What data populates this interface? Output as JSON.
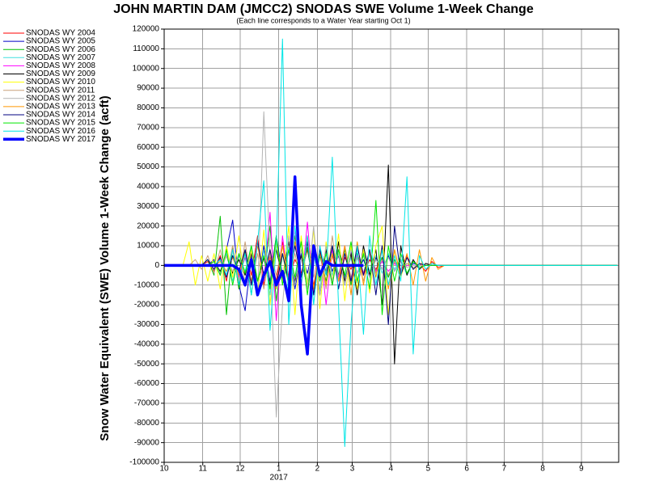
{
  "chart_data": {
    "type": "line",
    "title": "JOHN MARTIN DAM (JMCC2) SNODAS SWE Volume 1-Week Change",
    "subtitle": "(Each line corresponds to a Water Year starting Oct 1)",
    "y_label": "Snow Water Equivalent (SWE) Volume 1-Week Change (acft)",
    "legend": "left",
    "grid": true,
    "xlim": [
      0,
      365
    ],
    "ylim": [
      -100000,
      120000
    ],
    "xticks": [
      {
        "value": 0,
        "label": "10"
      },
      {
        "value": 31,
        "label": "11"
      },
      {
        "value": 61,
        "label": "12"
      },
      {
        "value": 92,
        "label": "1",
        "sublabel": "2017"
      },
      {
        "value": 123,
        "label": "2"
      },
      {
        "value": 151,
        "label": "3"
      },
      {
        "value": 182,
        "label": "4"
      },
      {
        "value": 212,
        "label": "5"
      },
      {
        "value": 243,
        "label": "6"
      },
      {
        "value": 273,
        "label": "7"
      },
      {
        "value": 304,
        "label": "8"
      },
      {
        "value": 335,
        "label": "9"
      }
    ],
    "yticks": [
      -100000,
      -90000,
      -80000,
      -70000,
      -60000,
      -50000,
      -40000,
      -30000,
      -20000,
      -10000,
      0,
      10000,
      20000,
      30000,
      40000,
      50000,
      60000,
      70000,
      80000,
      90000,
      100000,
      110000,
      120000
    ],
    "x": [
      0,
      5,
      10,
      15,
      20,
      25,
      30,
      35,
      40,
      45,
      50,
      55,
      60,
      65,
      70,
      75,
      80,
      85,
      90,
      95,
      100,
      105,
      110,
      115,
      120,
      125,
      130,
      135,
      140,
      145,
      150,
      155,
      160,
      165,
      170,
      175,
      180,
      185,
      190,
      195,
      200,
      205,
      210,
      215,
      220,
      225,
      230,
      235,
      240,
      300,
      364
    ],
    "series": [
      {
        "name": "SNODAS WY 2004",
        "color": "#ff0000",
        "width": 1,
        "values": [
          0,
          0,
          0,
          0,
          0,
          0,
          0,
          2000,
          -3000,
          5000,
          -8000,
          10000,
          -12000,
          8000,
          -5000,
          15000,
          -10000,
          5000,
          -8000,
          12000,
          -6000,
          3000,
          -4000,
          8000,
          -10000,
          6000,
          -3000,
          5000,
          -8000,
          4000,
          -2000,
          6000,
          -5000,
          3000,
          -2000,
          4000,
          -6000,
          2000,
          -3000,
          5000,
          -2000,
          1000,
          -3000,
          2000,
          -1000,
          0,
          0,
          0,
          0,
          0,
          0
        ]
      },
      {
        "name": "SNODAS WY 2005",
        "color": "#0000c8",
        "width": 1,
        "values": [
          0,
          0,
          0,
          0,
          0,
          0,
          0,
          0,
          3000,
          -5000,
          8000,
          23000,
          -10000,
          -23000,
          5000,
          -12000,
          10000,
          -8000,
          15000,
          -5000,
          8000,
          -12000,
          6000,
          -4000,
          10000,
          -15000,
          8000,
          -3000,
          5000,
          -10000,
          7000,
          -4000,
          3000,
          -6000,
          4000,
          -2000,
          5000,
          -3000,
          2000,
          -4000,
          1000,
          0,
          0,
          0,
          0,
          0,
          0,
          0,
          0,
          0,
          0
        ]
      },
      {
        "name": "SNODAS WY 2006",
        "color": "#00c000",
        "width": 1,
        "values": [
          0,
          0,
          0,
          0,
          0,
          0,
          0,
          3000,
          -5000,
          25000,
          -25000,
          10000,
          -12000,
          8000,
          -15000,
          12000,
          -8000,
          20000,
          -18000,
          6000,
          -10000,
          15000,
          -6000,
          9000,
          -12000,
          5000,
          -8000,
          10000,
          -5000,
          8000,
          -10000,
          6000,
          -4000,
          7000,
          -3000,
          4000,
          -6000,
          3000,
          -2000,
          1000,
          -1000,
          0,
          0,
          0,
          0,
          0,
          0,
          0,
          0,
          0,
          0
        ]
      },
      {
        "name": "SNODAS WY 2007",
        "color": "#40e0e0",
        "width": 1,
        "values": [
          0,
          0,
          0,
          0,
          0,
          0,
          0,
          0,
          2000,
          -4000,
          6000,
          -8000,
          5000,
          -3000,
          10000,
          -12000,
          8000,
          -15000,
          12000,
          -6000,
          9000,
          -10000,
          14000,
          -8000,
          6000,
          -12000,
          10000,
          -5000,
          8000,
          -6000,
          4000,
          -9000,
          7000,
          -3000,
          5000,
          -4000,
          6000,
          -2000,
          3000,
          -5000,
          2000,
          -1000,
          0,
          0,
          0,
          0,
          0,
          0,
          0,
          0,
          0
        ]
      },
      {
        "name": "SNODAS WY 2008",
        "color": "#ff00ff",
        "width": 1,
        "values": [
          0,
          0,
          0,
          0,
          0,
          0,
          0,
          0,
          0,
          3000,
          -5000,
          8000,
          -6000,
          4000,
          -10000,
          12000,
          -8000,
          27000,
          -28000,
          15000,
          -10000,
          18000,
          -12000,
          22000,
          -15000,
          10000,
          -20000,
          8000,
          -6000,
          10000,
          -8000,
          5000,
          -4000,
          6000,
          -3000,
          2000,
          -3000,
          1000,
          -2000,
          0,
          0,
          0,
          0,
          0,
          0,
          0,
          0,
          0,
          0,
          0,
          0
        ]
      },
      {
        "name": "SNODAS WY 2009",
        "color": "#000000",
        "width": 1,
        "values": [
          0,
          0,
          0,
          0,
          0,
          0,
          0,
          0,
          2000,
          -3000,
          5000,
          -4000,
          3000,
          -5000,
          6000,
          -8000,
          4000,
          -10000,
          8000,
          -6000,
          12000,
          -8000,
          5000,
          -12000,
          10000,
          -6000,
          8000,
          -10000,
          12000,
          -8000,
          6000,
          -15000,
          10000,
          -5000,
          8000,
          -20000,
          51000,
          -50000,
          10000,
          -5000,
          3000,
          -2000,
          1000,
          0,
          0,
          0,
          0,
          0,
          0,
          0,
          0
        ]
      },
      {
        "name": "SNODAS WY 2010",
        "color": "#ffff00",
        "width": 1,
        "values": [
          0,
          0,
          0,
          0,
          12000,
          -10000,
          5000,
          -8000,
          6000,
          -12000,
          10000,
          -6000,
          15000,
          -10000,
          8000,
          -15000,
          18000,
          -20000,
          12000,
          -8000,
          20000,
          -25000,
          15000,
          -10000,
          18000,
          -22000,
          12000,
          -8000,
          16000,
          -18000,
          10000,
          -12000,
          8000,
          -14000,
          10000,
          20000,
          -25000,
          8000,
          -6000,
          4000,
          -2000,
          1000,
          0,
          0,
          0,
          0,
          0,
          0,
          0,
          0,
          0
        ]
      },
      {
        "name": "SNODAS WY 2011",
        "color": "#c8a078",
        "width": 1,
        "values": [
          0,
          0,
          0,
          0,
          0,
          3000,
          -2000,
          5000,
          -4000,
          8000,
          -6000,
          10000,
          -8000,
          12000,
          -10000,
          6000,
          -12000,
          8000,
          -5000,
          10000,
          -8000,
          6000,
          -10000,
          12000,
          -6000,
          8000,
          -12000,
          15000,
          -8000,
          10000,
          -6000,
          4000,
          -8000,
          6000,
          -4000,
          3000,
          -5000,
          2000,
          -3000,
          1000,
          -1000,
          0,
          0,
          0,
          0,
          0,
          0,
          0,
          0,
          0,
          0
        ]
      },
      {
        "name": "SNODAS WY 2012",
        "color": "#b4b4b4",
        "width": 1,
        "values": [
          0,
          0,
          0,
          0,
          0,
          0,
          0,
          0,
          2000,
          -4000,
          5000,
          -3000,
          6000,
          -8000,
          10000,
          -15000,
          78000,
          5000,
          -77000,
          -20000,
          15000,
          -10000,
          8000,
          -12000,
          20000,
          -15000,
          10000,
          -8000,
          6000,
          -10000,
          8000,
          -4000,
          5000,
          -6000,
          3000,
          -2000,
          4000,
          -3000,
          2000,
          -1000,
          0,
          0,
          0,
          0,
          0,
          0,
          0,
          0,
          0,
          0,
          0
        ]
      },
      {
        "name": "SNODAS WY 2013",
        "color": "#ff9600",
        "width": 1,
        "values": [
          0,
          0,
          0,
          0,
          0,
          0,
          0,
          0,
          0,
          2000,
          -3000,
          4000,
          -5000,
          6000,
          -8000,
          10000,
          -6000,
          8000,
          -12000,
          10000,
          -8000,
          12000,
          -10000,
          15000,
          -12000,
          8000,
          -10000,
          6000,
          -8000,
          10000,
          -15000,
          12000,
          -10000,
          8000,
          -6000,
          10000,
          -12000,
          8000,
          -5000,
          6000,
          -10000,
          8000,
          -8000,
          4000,
          -2000,
          0,
          0,
          0,
          0,
          0,
          0
        ]
      },
      {
        "name": "SNODAS WY 2014",
        "color": "#000080",
        "width": 1,
        "values": [
          0,
          0,
          0,
          0,
          0,
          0,
          0,
          3000,
          -2000,
          4000,
          -6000,
          5000,
          -3000,
          8000,
          -10000,
          12000,
          -5000,
          8000,
          -10000,
          6000,
          -8000,
          10000,
          -6000,
          12000,
          -15000,
          8000,
          -5000,
          10000,
          -12000,
          6000,
          -8000,
          10000,
          -5000,
          8000,
          -15000,
          10000,
          -30000,
          20000,
          -5000,
          4000,
          -2000,
          1000,
          0,
          0,
          0,
          0,
          0,
          0,
          0,
          0,
          0
        ]
      },
      {
        "name": "SNODAS WY 2015",
        "color": "#00e600",
        "width": 1,
        "values": [
          0,
          0,
          0,
          0,
          0,
          0,
          0,
          0,
          2000,
          -5000,
          8000,
          -10000,
          6000,
          -4000,
          10000,
          -8000,
          5000,
          -12000,
          15000,
          -10000,
          8000,
          -6000,
          12000,
          -15000,
          10000,
          -8000,
          6000,
          -10000,
          8000,
          -5000,
          12000,
          -8000,
          6000,
          -12000,
          33000,
          -25000,
          10000,
          -8000,
          6000,
          -4000,
          2000,
          -1000,
          0,
          0,
          0,
          0,
          0,
          0,
          0,
          0,
          0
        ]
      },
      {
        "name": "SNODAS WY 2016",
        "color": "#00e6e6",
        "width": 1,
        "values": [
          0,
          0,
          0,
          0,
          0,
          0,
          0,
          0,
          0,
          3000,
          -5000,
          8000,
          -10000,
          6000,
          -15000,
          12000,
          43000,
          -33000,
          10000,
          115000,
          -30000,
          20000,
          -10000,
          15000,
          -20000,
          10000,
          -5000,
          55000,
          -20000,
          -92000,
          -30000,
          10000,
          -35000,
          15000,
          -10000,
          8000,
          -10000,
          5000,
          -8000,
          45000,
          -45000,
          5000,
          -2000,
          1000,
          0,
          0,
          0,
          0,
          0,
          0,
          0
        ]
      },
      {
        "name": "SNODAS WY 2017",
        "color": "#0000ff",
        "width": 3.5,
        "values": [
          0,
          0,
          0,
          0,
          0,
          0,
          0,
          0,
          0,
          0,
          0,
          0,
          -2000,
          -10000,
          3000,
          -15000,
          -5000,
          2000,
          -10000,
          -3000,
          -18000,
          45000,
          -20000,
          -45000,
          10000,
          -5000,
          2000,
          0,
          0,
          0,
          0,
          0,
          0,
          null,
          null,
          null,
          null,
          null,
          null,
          null,
          null,
          null,
          null,
          null,
          null,
          null,
          null,
          null,
          null,
          null,
          null
        ]
      }
    ]
  }
}
